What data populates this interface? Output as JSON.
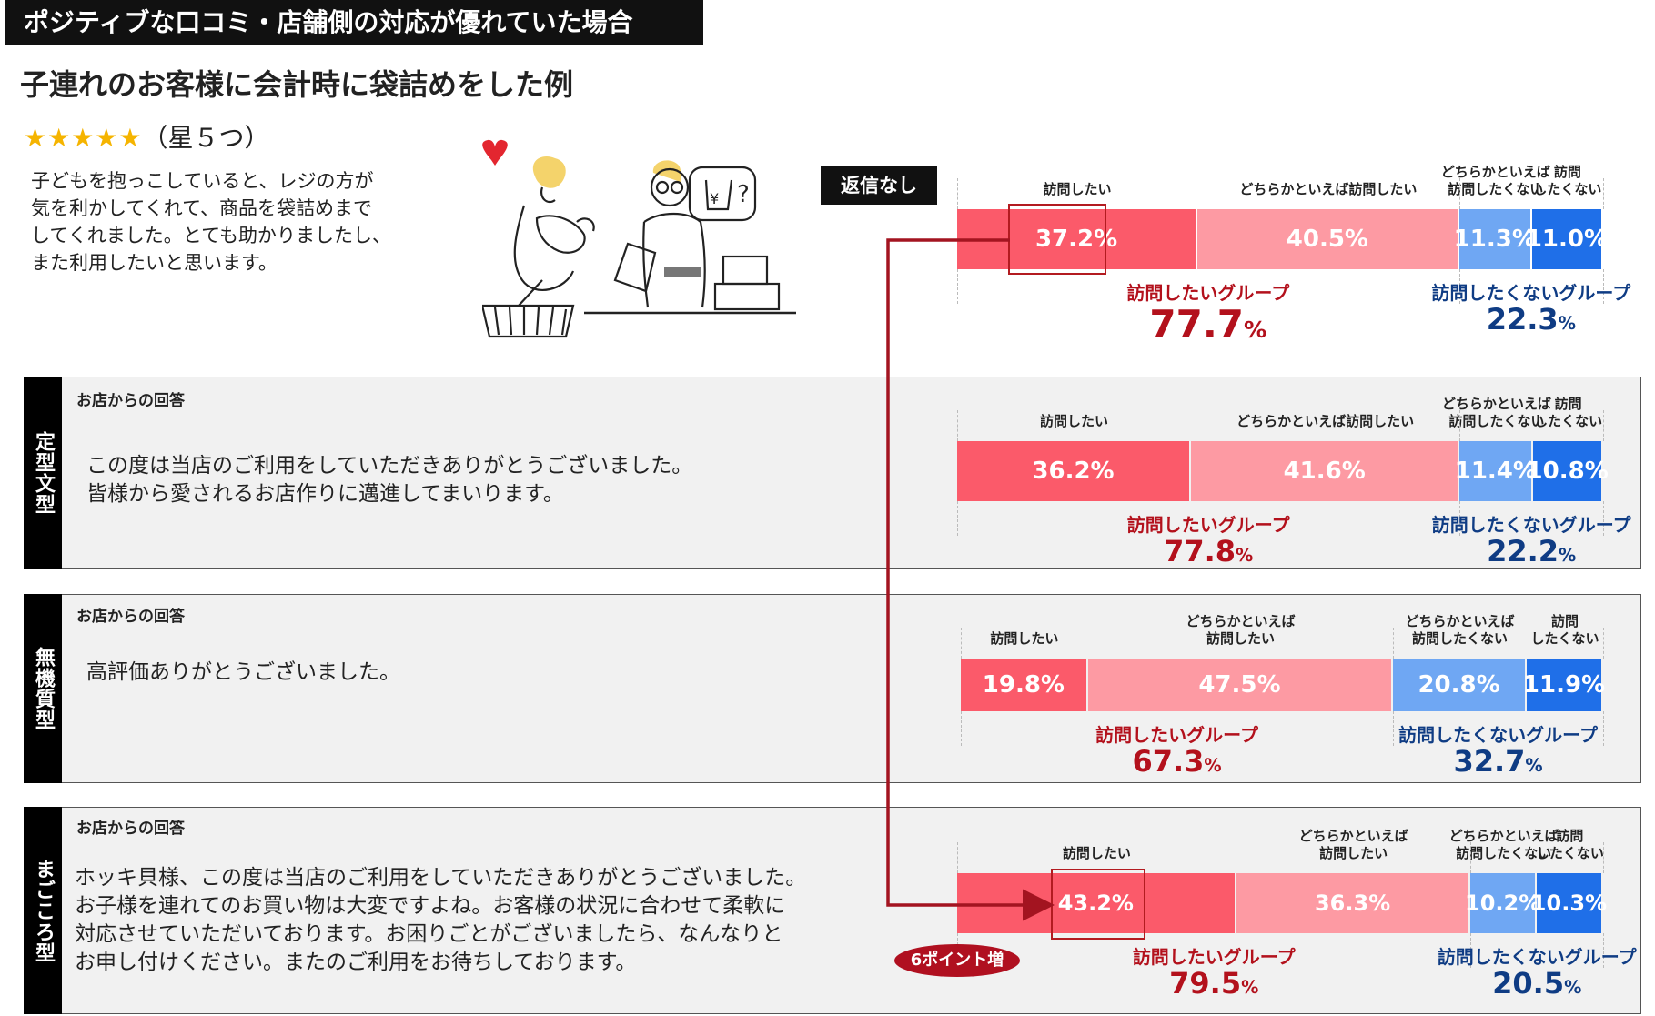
{
  "header": {
    "title": "ポジティブな口コミ・店舗側の対応が優れていた場合",
    "subtitle": "子連れのお客様に会計時に袋詰めをした例"
  },
  "review": {
    "stars": "★★★★★",
    "star_caption": "（星５つ）",
    "lines": [
      "子どもを抱っこしていると、レジの方が",
      "気を利かしてくれて、商品を袋詰めまで",
      "してくれました。とても助かりましたし、",
      "また利用したいと思います。"
    ]
  },
  "response_label": "お店からの回答",
  "categories": {
    "visit": "訪問したい",
    "rather_visit": "どちらかといえば訪問したい",
    "rather_visit_split": [
      "どちらかといえば",
      "訪問したい"
    ],
    "rather_not": [
      "どちらかといえば",
      "訪問したくない"
    ],
    "not": [
      "訪問",
      "したくない"
    ]
  },
  "group_labels": {
    "want": "訪問したいグループ",
    "not_want": "訪問したくないグループ"
  },
  "colors": {
    "visit": "#fb5a6a",
    "rather_visit": "#fd9aa3",
    "rather_not": "#6fa7f3",
    "not": "#1f6fe8",
    "group_want": "#b3111c",
    "group_not": "#0f3c84"
  },
  "no_reply": {
    "label": "返信なし"
  },
  "sections": [
    {
      "tab": "定型文型",
      "text": [
        "この度は当店のご利用をしていただきありがとうございました。",
        "皆様から愛されるお店作りに邁進してまいります。"
      ]
    },
    {
      "tab": "無機質型",
      "text": [
        "高評価ありがとうございました。"
      ]
    },
    {
      "tab": "まごころ型",
      "text": [
        "ホッキ貝様、この度は当店のご利用をしていただきありがとうございました。",
        "お子様を連れてのお買い物は大変ですよね。お客様の状況に合わせて柔軟に",
        "対応させていただいております。お困りごとがございましたら、なんなりと",
        "お申し付けください。またのご利用をお待ちしております。"
      ]
    }
  ],
  "badge": "6ポイント増",
  "chart_data": {
    "type": "bar",
    "stacked": true,
    "orientation": "horizontal",
    "categories": [
      "返信なし",
      "定型文型",
      "無機質型",
      "まごころ型"
    ],
    "series": [
      {
        "name": "訪問したい",
        "values": [
          37.2,
          36.2,
          19.8,
          43.2
        ]
      },
      {
        "name": "どちらかといえば訪問したい",
        "values": [
          40.5,
          41.6,
          47.5,
          36.3
        ]
      },
      {
        "name": "どちらかといえば訪問したくない",
        "values": [
          11.3,
          11.4,
          20.8,
          10.2
        ]
      },
      {
        "name": "訪問したくない",
        "values": [
          11.0,
          10.8,
          11.9,
          10.3
        ]
      }
    ],
    "groups": {
      "訪問したいグループ": [
        77.7,
        77.8,
        67.3,
        79.5
      ],
      "訪問したくないグループ": [
        22.3,
        22.2,
        32.7,
        20.5
      ]
    },
    "annotation": "6ポイント増"
  }
}
